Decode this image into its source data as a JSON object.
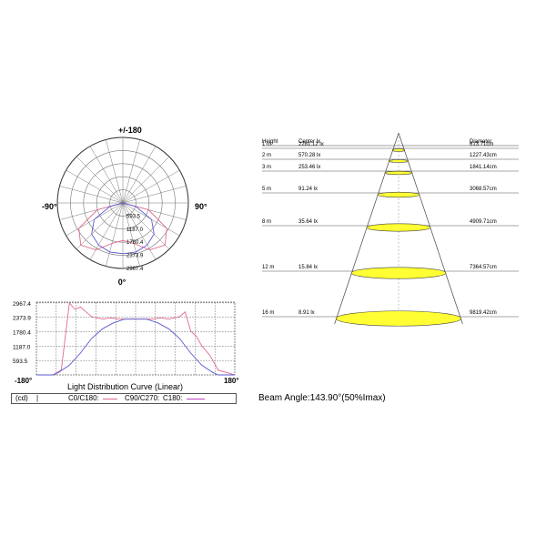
{
  "polar": {
    "top_label": "+/-180",
    "bottom_label": "0°",
    "left_label": "-90°",
    "right_label": "90°",
    "ring_labels": [
      "593.5",
      "1187.0",
      "1780.4",
      "2373.9",
      "2967.4"
    ],
    "colors": {
      "c0_c180": "#e06a8c",
      "c90_c270": "#5a5ad0",
      "grid": "#777777"
    }
  },
  "linear": {
    "title": "Light Distribution Curve (Linear)",
    "x_left_label": "-180°",
    "x_right_label": "180°",
    "y_tick_labels": [
      "2967.4",
      "2373.9",
      "1780.4",
      "1187.0",
      "593.5"
    ],
    "legend": {
      "unit": "(cd)",
      "sep": "|",
      "c0": "C0/C180:",
      "c90": "C90/C270:",
      "c180": "C180:"
    }
  },
  "beam": {
    "headers": {
      "height": "Height",
      "center": "Center lx",
      "diameter": "Diameter"
    },
    "rows": [
      {
        "height": "1 m",
        "center": "2281.12 lx",
        "diameter": "613.71cm"
      },
      {
        "height": "2 m",
        "center": "570.28 lx",
        "diameter": "1227.43cm"
      },
      {
        "height": "3 m",
        "center": "253.46 lx",
        "diameter": "1841.14cm"
      },
      {
        "height": "5 m",
        "center": "91.24 lx",
        "diameter": "3068.57cm"
      },
      {
        "height": "8 m",
        "center": "35.64 lx",
        "diameter": "4909.71cm"
      },
      {
        "height": "12 m",
        "center": "15.84 lx",
        "diameter": "7364.57cm"
      },
      {
        "height": "16 m",
        "center": "8.91 lx",
        "diameter": "9819.42cm"
      }
    ],
    "beam_angle_label": "Beam Angle:143.90°(50%Imax)",
    "ellipse_color": "#ffff33"
  },
  "chart_data": [
    {
      "type": "polar",
      "rlim": [
        0,
        2967.4
      ],
      "series": [
        {
          "angles": [
            -90,
            -75,
            -60,
            -45,
            -30,
            -15,
            0,
            15,
            30,
            45,
            60,
            75,
            90
          ],
          "values": [
            0,
            1200,
            2300,
            2700,
            2450,
            1900,
            1700,
            1900,
            2450,
            2700,
            2300,
            1200,
            0
          ]
        },
        {
          "angles": [
            -90,
            -75,
            -60,
            -45,
            -30,
            -15,
            0,
            15,
            30,
            45,
            60,
            75,
            90
          ],
          "values": [
            0,
            600,
            1500,
            2000,
            2200,
            2300,
            2300,
            2300,
            2200,
            2000,
            1500,
            600,
            0
          ]
        }
      ]
    },
    {
      "type": "line",
      "xlim": [
        -180,
        180
      ],
      "ylim": [
        0,
        3000
      ],
      "series": [
        {
          "x": [
            -180,
            -150,
            -135,
            -120,
            -110,
            -100,
            -90,
            -80,
            -60,
            -45,
            -30,
            0,
            30,
            45,
            60,
            80,
            90,
            100,
            110,
            120,
            135,
            150,
            180
          ],
          "y": [
            0,
            0,
            200,
            2967,
            2700,
            2800,
            2600,
            2400,
            2300,
            2350,
            2300,
            2300,
            2300,
            2350,
            2300,
            2400,
            2600,
            1800,
            1600,
            1200,
            800,
            200,
            0
          ]
        },
        {
          "x": [
            -180,
            -150,
            -140,
            -120,
            -100,
            -80,
            -60,
            -40,
            -20,
            0,
            20,
            40,
            60,
            80,
            100,
            120,
            140,
            150,
            180
          ],
          "y": [
            0,
            0,
            100,
            400,
            900,
            1500,
            1900,
            2150,
            2300,
            2300,
            2300,
            2150,
            1900,
            1500,
            900,
            400,
            100,
            0,
            0
          ]
        }
      ]
    }
  ]
}
